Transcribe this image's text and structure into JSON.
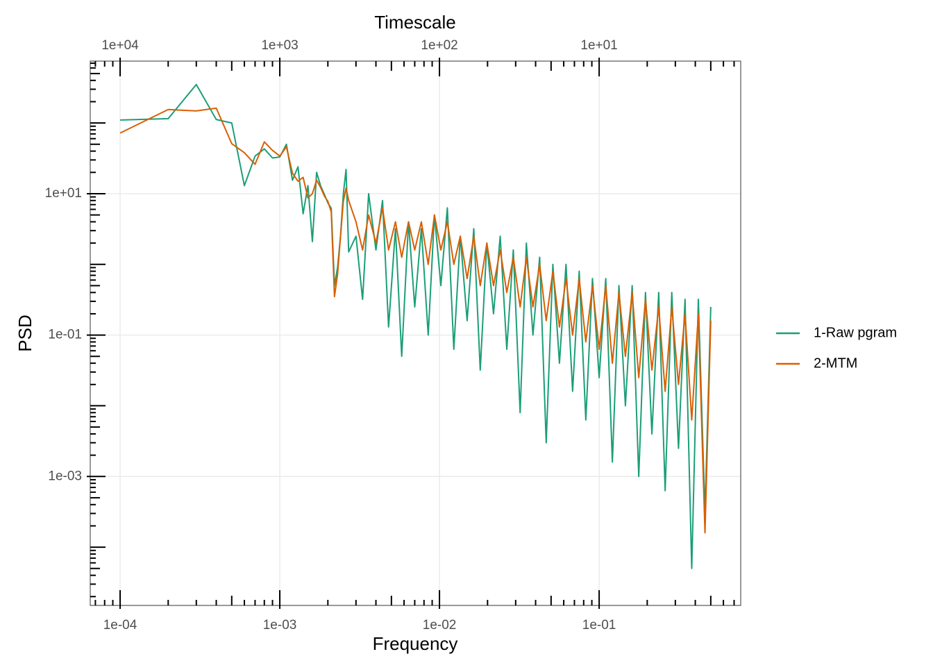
{
  "chart_data": {
    "type": "line",
    "xlabel": "Frequency",
    "ylabel": "PSD",
    "x2label": "Timescale",
    "xscale": "log",
    "yscale": "log",
    "grid": true,
    "legend": "right",
    "xlim": [
      6.5e-05,
      0.77
    ],
    "ylim": [
      1.5e-05,
      750
    ],
    "xticks": [
      {
        "value": 0.0001,
        "label": "1e-04"
      },
      {
        "value": 0.001,
        "label": "1e-03"
      },
      {
        "value": 0.01,
        "label": "1e-02"
      },
      {
        "value": 0.1,
        "label": "1e-01"
      }
    ],
    "yticks": [
      {
        "value": 0.001,
        "label": "1e-03"
      },
      {
        "value": 0.1,
        "label": "1e-01"
      },
      {
        "value": 10,
        "label": "1e+01"
      }
    ],
    "x2ticks": [
      {
        "value": 10000,
        "label": "1e+04"
      },
      {
        "value": 1000,
        "label": "1e+03"
      },
      {
        "value": 100,
        "label": "1e+02"
      },
      {
        "value": 10,
        "label": "1e+01"
      }
    ],
    "xminorticks": [
      7e-05,
      8e-05,
      9e-05,
      0.0002,
      0.0003,
      0.0004,
      0.0005,
      0.0006,
      0.0007,
      0.0008,
      0.0009,
      0.002,
      0.003,
      0.004,
      0.005,
      0.006,
      0.007,
      0.008,
      0.009,
      0.02,
      0.03,
      0.04,
      0.05,
      0.06,
      0.07,
      0.08,
      0.09,
      0.2,
      0.3,
      0.4,
      0.5,
      0.6,
      0.7
    ],
    "yminorticks": [
      2e-05,
      3e-05,
      4e-05,
      5e-05,
      6e-05,
      7e-05,
      8e-05,
      9e-05,
      0.0001,
      0.0002,
      0.0003,
      0.0004,
      0.0005,
      0.0006,
      0.0007,
      0.0008,
      0.0009,
      0.002,
      0.003,
      0.004,
      0.005,
      0.006,
      0.007,
      0.008,
      0.009,
      0.01,
      0.02,
      0.03,
      0.04,
      0.05,
      0.06,
      0.07,
      0.08,
      0.09,
      0.2,
      0.3,
      0.4,
      0.5,
      0.6,
      0.7,
      0.8,
      0.9,
      1,
      2,
      3,
      4,
      5,
      6,
      7,
      8,
      9,
      20,
      30,
      40,
      50,
      60,
      70,
      80,
      90,
      100,
      200,
      300,
      400,
      500,
      600,
      700
    ],
    "x": [
      0.0001,
      0.0002,
      0.0003,
      0.0004,
      0.0005,
      0.0006,
      0.0007,
      0.0008,
      0.0009,
      0.001,
      0.0011,
      0.0012,
      0.0013,
      0.0014,
      0.0015,
      0.0016,
      0.0017,
      0.0018,
      0.0019,
      0.002,
      0.0021,
      0.0022,
      0.0023,
      0.0024,
      0.0025,
      0.0026,
      0.0027,
      0.003,
      0.0033,
      0.0036,
      0.004,
      0.0044,
      0.0048,
      0.0053,
      0.0058,
      0.0064,
      0.007,
      0.0077,
      0.0085,
      0.0093,
      0.0102,
      0.0112,
      0.0123,
      0.0135,
      0.0149,
      0.0164,
      0.018,
      0.0198,
      0.0218,
      0.024,
      0.0264,
      0.029,
      0.032,
      0.035,
      0.0385,
      0.0424,
      0.0466,
      0.0513,
      0.0564,
      0.062,
      0.0682,
      0.075,
      0.0825,
      0.0908,
      0.1,
      0.11,
      0.121,
      0.133,
      0.146,
      0.161,
      0.177,
      0.195,
      0.214,
      0.236,
      0.259,
      0.285,
      0.314,
      0.345,
      0.38,
      0.418,
      0.46,
      0.5
    ],
    "series": [
      {
        "name": "1-Raw pgram",
        "color": "#1b9e77",
        "values": [
          110,
          115,
          350,
          112,
          100,
          13,
          34,
          43,
          32,
          33,
          50,
          15.5,
          24,
          5.2,
          13,
          2.1,
          20,
          13,
          9.8,
          7.4,
          6.2,
          0.5,
          0.9,
          2.5,
          10,
          22,
          1.5,
          2.5,
          0.32,
          10,
          1.6,
          8,
          0.13,
          3.2,
          0.05,
          4,
          0.25,
          3.2,
          0.1,
          5,
          0.5,
          6.3,
          0.063,
          2.5,
          0.16,
          3.2,
          0.032,
          2,
          0.2,
          2.5,
          0.063,
          1.6,
          0.008,
          2,
          0.1,
          1.26,
          0.003,
          1,
          0.04,
          1,
          0.016,
          0.8,
          0.0063,
          0.63,
          0.025,
          0.63,
          0.0016,
          0.5,
          0.01,
          0.5,
          0.001,
          0.4,
          0.004,
          0.4,
          0.00063,
          0.4,
          0.0025,
          0.32,
          5e-05,
          0.32,
          0.0003,
          0.25
        ]
      },
      {
        "name": "2-MTM",
        "color": "#d95f02",
        "values": [
          72,
          155,
          148,
          162,
          51,
          38,
          26,
          54,
          41,
          34,
          46,
          19.5,
          15,
          17,
          8.7,
          10,
          15.5,
          12.3,
          9.3,
          7.8,
          5.5,
          0.35,
          0.72,
          2.5,
          7.8,
          12,
          8,
          4,
          1.6,
          5,
          2,
          6.3,
          1.6,
          4,
          1.26,
          4,
          1.6,
          4,
          1,
          5,
          1.6,
          4,
          1,
          2.5,
          0.63,
          2.5,
          0.5,
          2,
          0.5,
          1.6,
          0.4,
          1.26,
          0.25,
          1.26,
          0.25,
          1,
          0.16,
          0.8,
          0.13,
          0.63,
          0.1,
          0.63,
          0.08,
          0.5,
          0.063,
          0.5,
          0.04,
          0.4,
          0.05,
          0.4,
          0.025,
          0.32,
          0.032,
          0.25,
          0.016,
          0.25,
          0.02,
          0.2,
          0.0063,
          0.2,
          0.00016,
          0.16
        ]
      }
    ]
  }
}
